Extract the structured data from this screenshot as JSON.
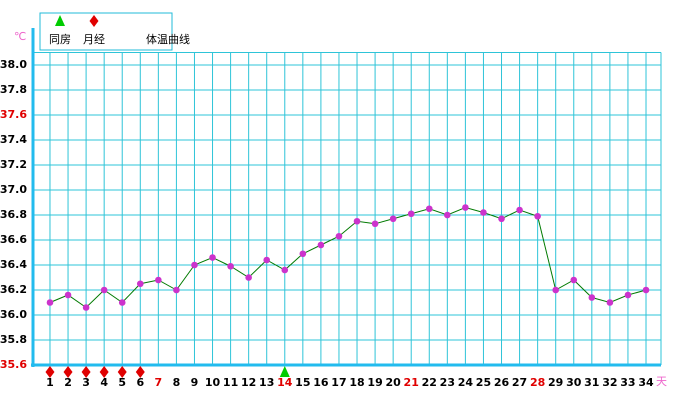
{
  "chart_data": {
    "type": "line",
    "x_unit": "天",
    "y_unit": "℃",
    "x": [
      1,
      2,
      3,
      4,
      5,
      6,
      7,
      8,
      9,
      10,
      11,
      12,
      13,
      14,
      15,
      16,
      17,
      18,
      19,
      20,
      21,
      22,
      23,
      24,
      25,
      26,
      27,
      28,
      29,
      30,
      31,
      32,
      33,
      34
    ],
    "xlim": [
      0.06,
      34.83
    ],
    "xticks": [
      1,
      2,
      3,
      4,
      5,
      6,
      7,
      8,
      9,
      10,
      11,
      12,
      13,
      14,
      15,
      16,
      17,
      18,
      19,
      20,
      21,
      22,
      23,
      24,
      25,
      26,
      27,
      28,
      29,
      30,
      31,
      32,
      33,
      34
    ],
    "xtick_colors": [
      "#000",
      "#000",
      "#000",
      "#000",
      "#000",
      "#000",
      "#e00000",
      "#000",
      "#000",
      "#000",
      "#000",
      "#000",
      "#000",
      "#e00000",
      "#000",
      "#000",
      "#000",
      "#000",
      "#000",
      "#000",
      "#e00000",
      "#000",
      "#000",
      "#000",
      "#000",
      "#000",
      "#000",
      "#e00000",
      "#000",
      "#000",
      "#000",
      "#000",
      "#000",
      "#000"
    ],
    "ylim": [
      35.6,
      38.1
    ],
    "yticks": [
      {
        "value": 35.6,
        "label": "35.6"
      },
      {
        "value": 35.8,
        "label": "35.8"
      },
      {
        "value": 36.0,
        "label": "36.0"
      },
      {
        "value": 36.2,
        "label": "36.2"
      },
      {
        "value": 36.4,
        "label": "36.4"
      },
      {
        "value": 36.6,
        "label": "36.6"
      },
      {
        "value": 36.8,
        "label": "36.8"
      },
      {
        "value": 37.0,
        "label": "37.0"
      },
      {
        "value": 37.2,
        "label": "37.2"
      },
      {
        "value": 37.4,
        "label": "37.4"
      },
      {
        "value": 37.6,
        "label": "37.6"
      },
      {
        "value": 37.8,
        "label": "37.8"
      },
      {
        "value": 38.0,
        "label": "38.0"
      }
    ],
    "ytick_colors": [
      "#e00000",
      "#000",
      "#000",
      "#000",
      "#000",
      "#000",
      "#000",
      "#000",
      "#000",
      "#000",
      "#e00000",
      "#000",
      "#000"
    ],
    "grid": true,
    "markers": [
      {
        "name": "同房",
        "color": "#00cc00",
        "shape": "triangle",
        "days": [
          14
        ]
      },
      {
        "name": "月经",
        "color": "#e00000",
        "shape": "diamond",
        "days": [
          1,
          2,
          3,
          4,
          5,
          6
        ]
      }
    ],
    "series": [
      {
        "name": "体温曲线",
        "color": "#007a00",
        "marker_color": "#cc33cc",
        "values": [
          36.1,
          36.16,
          36.06,
          36.2,
          36.1,
          36.25,
          36.28,
          36.2,
          36.4,
          36.46,
          36.39,
          36.3,
          36.44,
          36.36,
          36.49,
          36.56,
          36.63,
          36.75,
          36.73,
          36.77,
          36.81,
          36.85,
          36.8,
          36.86,
          36.82,
          36.77,
          36.84,
          36.79,
          36.2,
          36.28,
          36.14,
          36.1,
          36.16,
          36.2
        ]
      }
    ]
  }
}
